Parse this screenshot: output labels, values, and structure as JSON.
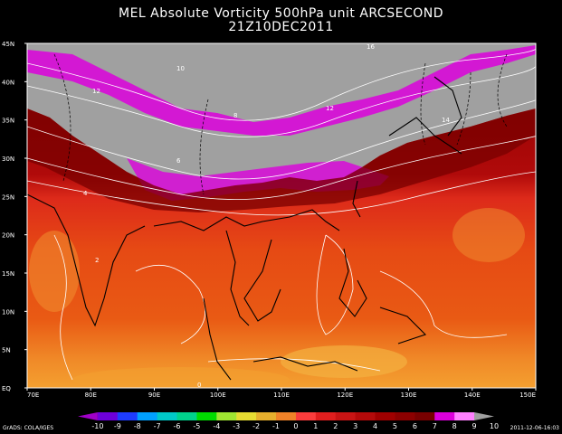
{
  "title": "MEL Absolute Vorticity 500hPa unit ARCSECOND",
  "subtitle": "21Z10DEC2011",
  "y_ticks": [
    "45N",
    "40N",
    "35N",
    "30N",
    "25N",
    "20N",
    "15N",
    "10N",
    "5N",
    "EQ"
  ],
  "x_ticks": [
    "70E",
    "80E",
    "90E",
    "100E",
    "110E",
    "120E",
    "130E",
    "140E",
    "150E"
  ],
  "colorbar": {
    "labels": [
      "-10",
      "-9",
      "-8",
      "-7",
      "-6",
      "-5",
      "-4",
      "-3",
      "-2",
      "-1",
      "0",
      "1",
      "2",
      "3",
      "4",
      "5",
      "6",
      "7",
      "8",
      "9",
      "10"
    ],
    "colors": [
      "#a000c8",
      "#6e00dc",
      "#1e3cff",
      "#00a0ff",
      "#00c8c8",
      "#00d28c",
      "#00dc00",
      "#a0e632",
      "#e6dc32",
      "#e6af2d",
      "#f08228",
      "#fa3c3c",
      "#e01e1e",
      "#c81414",
      "#b40a0a",
      "#a00000",
      "#8c0000",
      "#780000",
      "#dc00dc",
      "#ff80ff",
      "#a0a0a0"
    ]
  },
  "credit": "GrADS: COLA/IGES",
  "timestamp": "2011-12-06-16:03",
  "contour_labels": [
    "16",
    "10",
    "12",
    "12",
    "8",
    "6",
    "4",
    "2",
    "0",
    "14"
  ]
}
